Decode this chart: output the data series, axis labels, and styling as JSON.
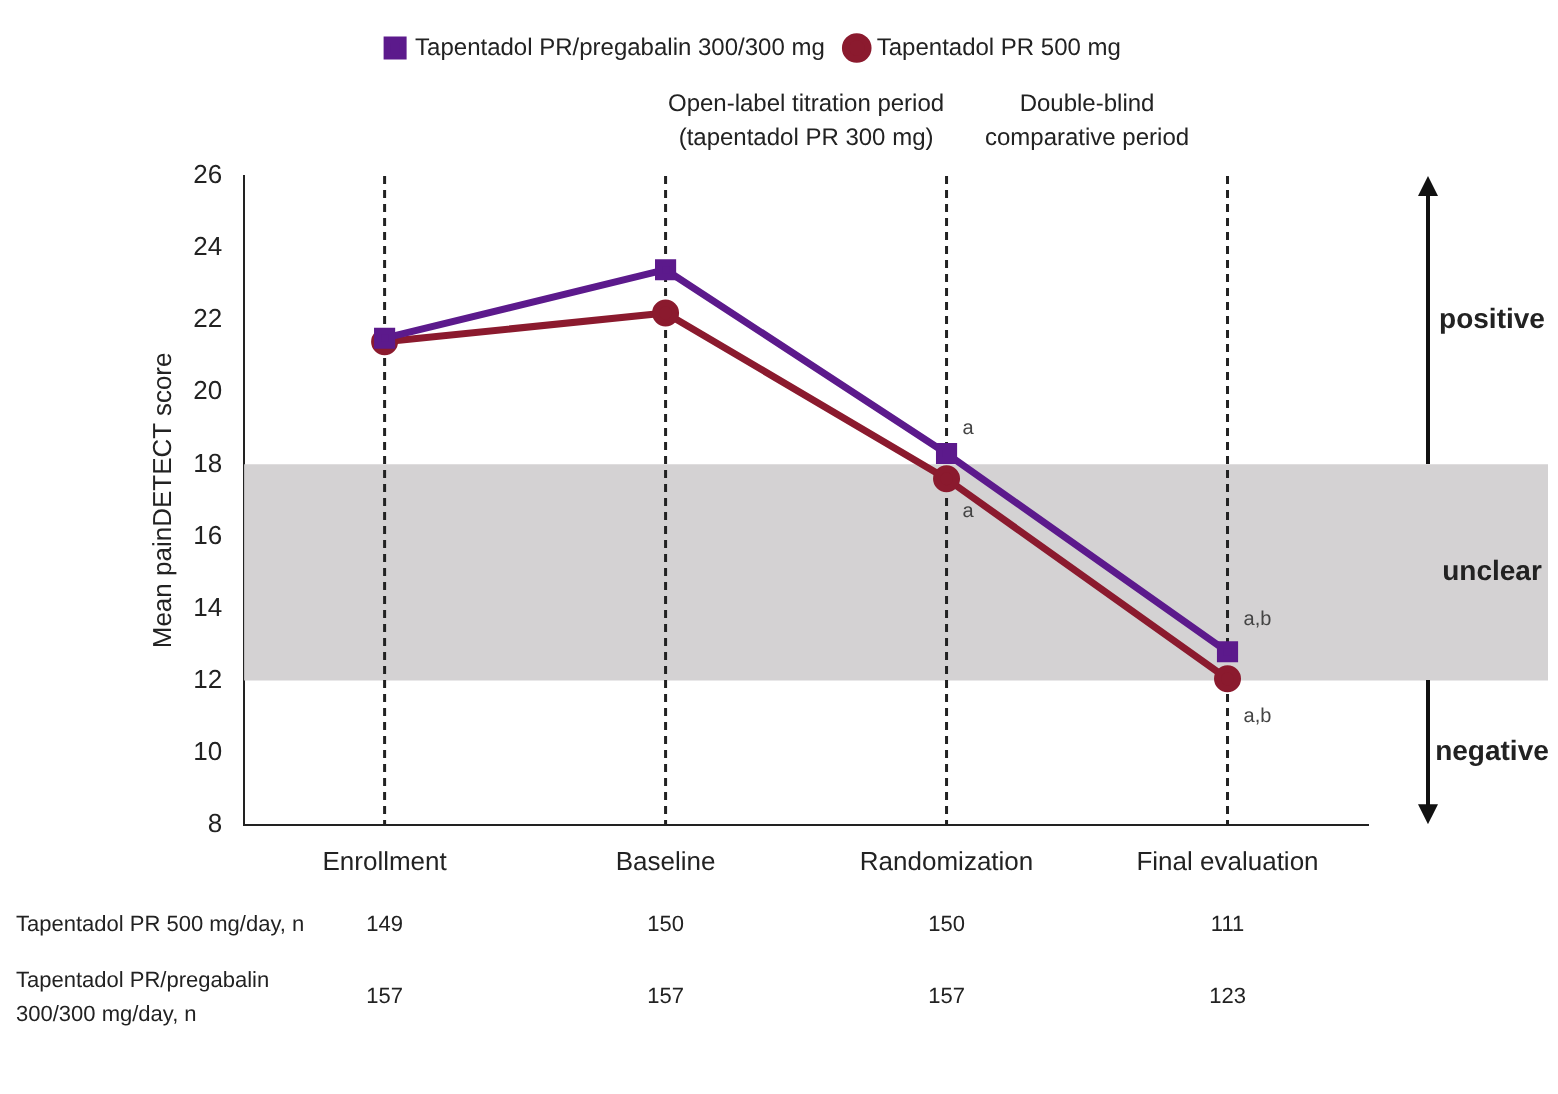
{
  "chart_data": {
    "type": "line",
    "ylabel": "Mean painDETECT score",
    "categories": [
      "Enrollment",
      "Baseline",
      "Randomization",
      "Final evaluation"
    ],
    "series": [
      {
        "name": "Tapentadol PR 500 mg",
        "color": "#8b1a2e",
        "marker": "circle",
        "values": [
          21.4,
          22.2,
          17.6,
          12.05
        ]
      },
      {
        "name": "Tapentadol PR/pregabalin 300/300 mg",
        "color": "#5c1a8c",
        "marker": "square",
        "values": [
          21.5,
          23.4,
          18.3,
          12.8
        ]
      }
    ],
    "ylim": [
      8,
      26
    ],
    "yticks": [
      8,
      10,
      12,
      14,
      16,
      18,
      20,
      22,
      24,
      26
    ],
    "grid": false,
    "legend": "top",
    "bands": [
      {
        "axis": "y",
        "from": 12,
        "to": 18,
        "label": "unclear",
        "color": "#d4d2d3"
      }
    ],
    "ref_lines": [
      {
        "axis": "x",
        "value": "Enrollment",
        "line_style": "dashed"
      },
      {
        "axis": "x",
        "value": "Baseline",
        "line_style": "dashed"
      },
      {
        "axis": "x",
        "value": "Randomization",
        "line_style": "dashed"
      },
      {
        "axis": "x",
        "value": "Final evaluation",
        "line_style": "dashed"
      }
    ],
    "annotations": [
      "Open-label titration period\n(tapentadol PR 300 mg)",
      "Double-blind\ncomparative period",
      "positive",
      "negative",
      "Tapentadol PR 500 mg/day, n",
      "149",
      "150",
      "150",
      "111",
      "Tapentadol PR/pregabalin\n300/300 mg/day, n",
      "157",
      "157",
      "157",
      "123",
      {
        "text": "a",
        "x": "Randomization",
        "y": 19.0
      },
      {
        "text": "a",
        "x": "Randomization",
        "y": 16.7
      },
      {
        "text": "a,b",
        "x": "Final evaluation",
        "y": 13.7
      },
      {
        "text": "a,b",
        "x": "Final evaluation",
        "y": 11.0
      }
    ]
  }
}
